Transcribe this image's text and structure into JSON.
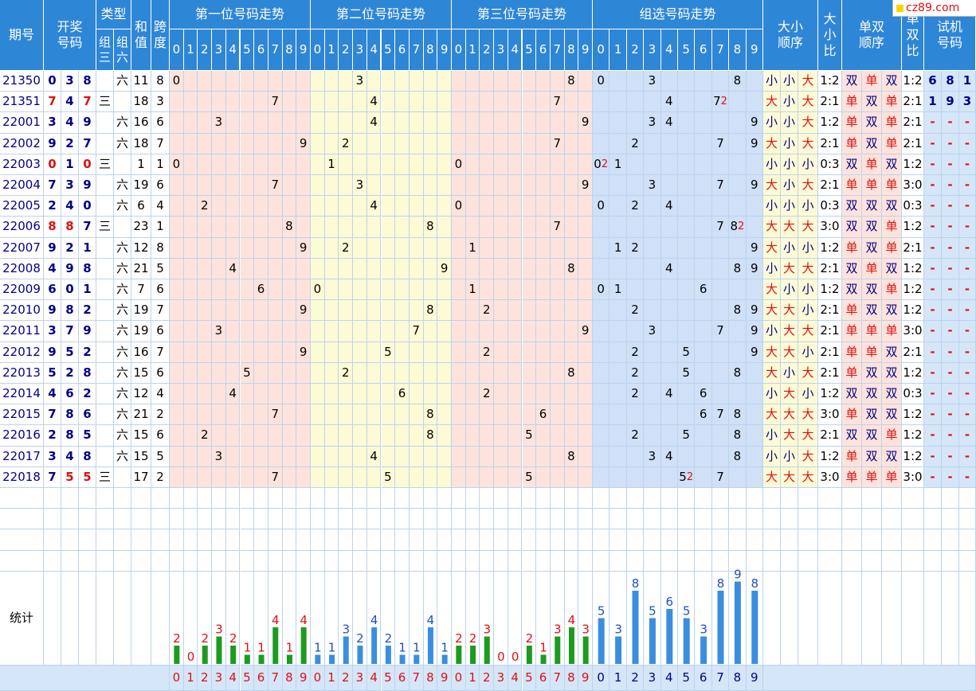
{
  "header": {
    "period": "期号",
    "draw": "开奖\n号码",
    "type": "类型",
    "type_g3": "组\n三",
    "type_g6": "组\n六",
    "sum": "和\n值",
    "span": "跨\n度",
    "pos1": "第一位号码走势",
    "pos2": "第二位号码走势",
    "pos3": "第三位号码走势",
    "group": "组选号码走势",
    "bs_order": "大小\n顺序",
    "bs_ratio": "大\n小\n比",
    "oe_order": "单双\n顺序",
    "oe_ratio": "单\n双\n比",
    "trial": "试机\n号码"
  },
  "digits": [
    "0",
    "1",
    "2",
    "3",
    "4",
    "5",
    "6",
    "7",
    "8",
    "9"
  ],
  "logo": "cz89.com",
  "stats_label": "统计",
  "draws": [
    {
      "p": "21350",
      "n": [
        0,
        3,
        8
      ],
      "t": "六",
      "s": 11,
      "k": 8,
      "bs": [
        "小",
        "小",
        "大"
      ],
      "bsr": "1:2",
      "oe": [
        "双",
        "单",
        "双"
      ],
      "oer": "1:2",
      "tr": [
        "6",
        "8",
        "1"
      ]
    },
    {
      "p": "21351",
      "n": [
        7,
        4,
        7
      ],
      "t": "三",
      "s": 18,
      "k": 3,
      "bs": [
        "大",
        "小",
        "大"
      ],
      "bsr": "2:1",
      "oe": [
        "单",
        "双",
        "单"
      ],
      "oer": "2:1",
      "tr": [
        "1",
        "9",
        "3"
      ]
    },
    {
      "p": "22001",
      "n": [
        3,
        4,
        9
      ],
      "t": "六",
      "s": 16,
      "k": 6,
      "bs": [
        "小",
        "小",
        "大"
      ],
      "bsr": "1:2",
      "oe": [
        "单",
        "双",
        "单"
      ],
      "oer": "2:1",
      "tr": [
        "-",
        "-",
        "-"
      ]
    },
    {
      "p": "22002",
      "n": [
        9,
        2,
        7
      ],
      "t": "六",
      "s": 18,
      "k": 7,
      "bs": [
        "大",
        "小",
        "大"
      ],
      "bsr": "2:1",
      "oe": [
        "单",
        "双",
        "单"
      ],
      "oer": "2:1",
      "tr": [
        "-",
        "-",
        "-"
      ]
    },
    {
      "p": "22003",
      "n": [
        0,
        1,
        0
      ],
      "t": "三",
      "s": 1,
      "k": 1,
      "bs": [
        "小",
        "小",
        "小"
      ],
      "bsr": "0:3",
      "oe": [
        "双",
        "单",
        "双"
      ],
      "oer": "1:2",
      "tr": [
        "-",
        "-",
        "-"
      ]
    },
    {
      "p": "22004",
      "n": [
        7,
        3,
        9
      ],
      "t": "六",
      "s": 19,
      "k": 6,
      "bs": [
        "大",
        "小",
        "大"
      ],
      "bsr": "2:1",
      "oe": [
        "单",
        "单",
        "单"
      ],
      "oer": "3:0",
      "tr": [
        "-",
        "-",
        "-"
      ]
    },
    {
      "p": "22005",
      "n": [
        2,
        4,
        0
      ],
      "t": "六",
      "s": 6,
      "k": 4,
      "bs": [
        "小",
        "小",
        "小"
      ],
      "bsr": "0:3",
      "oe": [
        "双",
        "双",
        "双"
      ],
      "oer": "0:3",
      "tr": [
        "-",
        "-",
        "-"
      ]
    },
    {
      "p": "22006",
      "n": [
        8,
        8,
        7
      ],
      "t": "三",
      "s": 23,
      "k": 1,
      "bs": [
        "大",
        "大",
        "大"
      ],
      "bsr": "3:0",
      "oe": [
        "双",
        "双",
        "单"
      ],
      "oer": "1:2",
      "tr": [
        "-",
        "-",
        "-"
      ]
    },
    {
      "p": "22007",
      "n": [
        9,
        2,
        1
      ],
      "t": "六",
      "s": 12,
      "k": 8,
      "bs": [
        "大",
        "小",
        "小"
      ],
      "bsr": "1:2",
      "oe": [
        "单",
        "双",
        "单"
      ],
      "oer": "2:1",
      "tr": [
        "-",
        "-",
        "-"
      ]
    },
    {
      "p": "22008",
      "n": [
        4,
        9,
        8
      ],
      "t": "六",
      "s": 21,
      "k": 5,
      "bs": [
        "小",
        "大",
        "大"
      ],
      "bsr": "2:1",
      "oe": [
        "双",
        "单",
        "双"
      ],
      "oer": "1:2",
      "tr": [
        "-",
        "-",
        "-"
      ]
    },
    {
      "p": "22009",
      "n": [
        6,
        0,
        1
      ],
      "t": "六",
      "s": 7,
      "k": 6,
      "bs": [
        "大",
        "小",
        "小"
      ],
      "bsr": "1:2",
      "oe": [
        "双",
        "双",
        "单"
      ],
      "oer": "1:2",
      "tr": [
        "-",
        "-",
        "-"
      ]
    },
    {
      "p": "22010",
      "n": [
        9,
        8,
        2
      ],
      "t": "六",
      "s": 19,
      "k": 7,
      "bs": [
        "大",
        "大",
        "小"
      ],
      "bsr": "2:1",
      "oe": [
        "单",
        "双",
        "双"
      ],
      "oer": "1:2",
      "tr": [
        "-",
        "-",
        "-"
      ]
    },
    {
      "p": "22011",
      "n": [
        3,
        7,
        9
      ],
      "t": "六",
      "s": 19,
      "k": 6,
      "bs": [
        "小",
        "大",
        "大"
      ],
      "bsr": "2:1",
      "oe": [
        "单",
        "单",
        "单"
      ],
      "oer": "3:0",
      "tr": [
        "-",
        "-",
        "-"
      ]
    },
    {
      "p": "22012",
      "n": [
        9,
        5,
        2
      ],
      "t": "六",
      "s": 16,
      "k": 7,
      "bs": [
        "大",
        "大",
        "小"
      ],
      "bsr": "2:1",
      "oe": [
        "单",
        "单",
        "双"
      ],
      "oer": "2:1",
      "tr": [
        "-",
        "-",
        "-"
      ]
    },
    {
      "p": "22013",
      "n": [
        5,
        2,
        8
      ],
      "t": "六",
      "s": 15,
      "k": 6,
      "bs": [
        "大",
        "小",
        "大"
      ],
      "bsr": "2:1",
      "oe": [
        "单",
        "双",
        "双"
      ],
      "oer": "1:2",
      "tr": [
        "-",
        "-",
        "-"
      ]
    },
    {
      "p": "22014",
      "n": [
        4,
        6,
        2
      ],
      "t": "六",
      "s": 12,
      "k": 4,
      "bs": [
        "小",
        "大",
        "小"
      ],
      "bsr": "1:2",
      "oe": [
        "双",
        "双",
        "双"
      ],
      "oer": "0:3",
      "tr": [
        "-",
        "-",
        "-"
      ]
    },
    {
      "p": "22015",
      "n": [
        7,
        8,
        6
      ],
      "t": "六",
      "s": 21,
      "k": 2,
      "bs": [
        "大",
        "大",
        "大"
      ],
      "bsr": "3:0",
      "oe": [
        "单",
        "双",
        "双"
      ],
      "oer": "1:2",
      "tr": [
        "-",
        "-",
        "-"
      ]
    },
    {
      "p": "22016",
      "n": [
        2,
        8,
        5
      ],
      "t": "六",
      "s": 15,
      "k": 6,
      "bs": [
        "小",
        "大",
        "大"
      ],
      "bsr": "2:1",
      "oe": [
        "双",
        "双",
        "单"
      ],
      "oer": "1:2",
      "tr": [
        "-",
        "-",
        "-"
      ]
    },
    {
      "p": "22017",
      "n": [
        3,
        4,
        8
      ],
      "t": "六",
      "s": 15,
      "k": 5,
      "bs": [
        "小",
        "小",
        "大"
      ],
      "bsr": "1:2",
      "oe": [
        "单",
        "双",
        "双"
      ],
      "oer": "1:2",
      "tr": [
        "-",
        "-",
        "-"
      ]
    },
    {
      "p": "22018",
      "n": [
        7,
        5,
        5
      ],
      "t": "三",
      "s": 17,
      "k": 2,
      "bs": [
        "大",
        "大",
        "大"
      ],
      "bsr": "3:0",
      "oe": [
        "单",
        "单",
        "单"
      ],
      "oer": "3:0",
      "tr": [
        "-",
        "-",
        "-"
      ]
    }
  ],
  "chart_data": {
    "type": "bar",
    "categories": [
      "0",
      "1",
      "2",
      "3",
      "4",
      "5",
      "6",
      "7",
      "8",
      "9"
    ],
    "series": [
      {
        "values": [
          2,
          0,
          2,
          3,
          2,
          1,
          1,
          4,
          1,
          4
        ],
        "color": "#1e9a1e"
      },
      {
        "values": [
          1,
          1,
          3,
          2,
          4,
          2,
          1,
          1,
          4,
          1
        ],
        "color": "#3a8ee0"
      },
      {
        "values": [
          2,
          2,
          3,
          0,
          0,
          2,
          1,
          3,
          4,
          3
        ],
        "color": "#1e9a1e"
      },
      {
        "values": [
          5,
          3,
          8,
          5,
          6,
          5,
          3,
          8,
          9,
          8
        ],
        "color": "#3a8ee0"
      }
    ]
  },
  "colors": {
    "header": "#2e86d6",
    "pos1": "#fde3dc",
    "pos2": "#fdfad6",
    "pos3": "#fde3dc",
    "group": "#cfe0f7",
    "trial": "#d5e6f8",
    "rowline": "#bcd4ec"
  }
}
